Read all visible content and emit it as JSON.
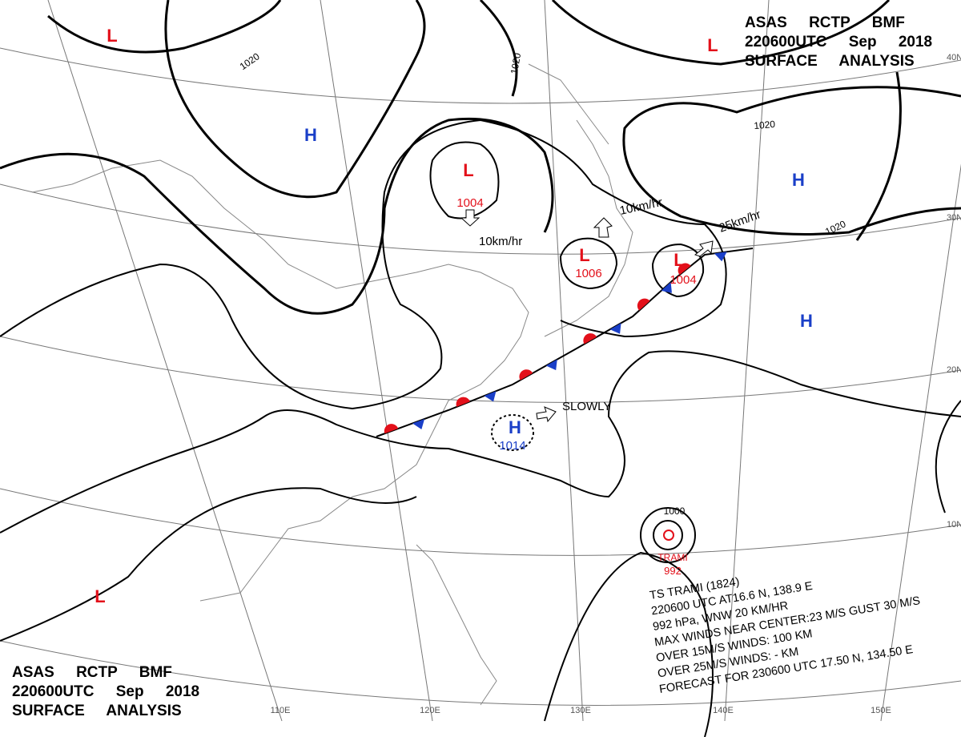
{
  "header_top": [
    "ASAS RCTP BMF",
    "220600UTC Sep 2018",
    "SURFACE ANALYSIS"
  ],
  "header_bottom": [
    "ASAS RCTP BMF",
    "220600UTC Sep 2018",
    "SURFACE ANALYSIS"
  ],
  "center_colors": {
    "L": "#e3101a",
    "H": "#1a3fc8"
  },
  "pressure_centers": [
    {
      "type": "L"
    },
    {
      "type": "H"
    },
    {
      "type": "L",
      "value": "1004"
    },
    {
      "type": "L",
      "value": "1006"
    },
    {
      "type": "L",
      "value": "1004"
    },
    {
      "type": "H",
      "value": "1014"
    },
    {
      "type": "L"
    },
    {
      "type": "H"
    },
    {
      "type": "H"
    },
    {
      "type": "L"
    }
  ],
  "isobar_labels": [
    "1020",
    "1020",
    "1020",
    "1020",
    "1000"
  ],
  "motion_labels": [
    "10km/hr",
    "10km/hr",
    "25km/hr",
    "SLOWLY"
  ],
  "typhoon": {
    "name": "TRAMI",
    "pressure": "992",
    "info": [
      "TS TRAMI (1824)",
      "220600 UTC AT16.6 N, 138.9 E",
      "992 hPa, WNW 20 KM/HR",
      "MAX WINDS NEAR CENTER:23 M/S GUST 30 M/S",
      "OVER 15M/S WINDS: 100 KM",
      "OVER 25M/S WINDS: - KM",
      "FORECAST FOR 230600 UTC 17.50 N, 134.50 E"
    ]
  },
  "lat_labels": [
    "40N",
    "30N",
    "20N",
    "10N"
  ],
  "lon_labels": [
    "110E",
    "120E",
    "130E",
    "140E",
    "150E"
  ]
}
